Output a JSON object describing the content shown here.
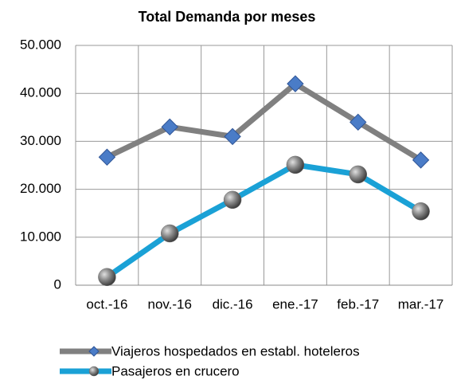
{
  "chart_data": {
    "type": "line",
    "title": "Total Demanda por meses",
    "categories": [
      "oct.-16",
      "nov.-16",
      "dic.-16",
      "ene.-17",
      "feb.-17",
      "mar.-17"
    ],
    "series": [
      {
        "name": "Viajeros hospedados en establ. hoteleros",
        "color": "#808080",
        "marker": "diamond",
        "marker_color": "#4a7cc7",
        "values": [
          26700,
          33000,
          31000,
          42000,
          34000,
          26100
        ]
      },
      {
        "name": "Pasajeros en crucero",
        "color": "#1aa1d6",
        "marker": "circle",
        "marker_color": "#6e6e6e",
        "values": [
          1700,
          10800,
          17800,
          25100,
          23100,
          15400
        ]
      }
    ],
    "ylim": [
      0,
      50000
    ],
    "yticks": [
      0,
      {
        "value": 10000,
        "label": "10.000"
      },
      {
        "value": 20000,
        "label": "20.000"
      },
      {
        "value": 30000,
        "label": "30.000"
      },
      {
        "value": 40000,
        "label": "40.000"
      },
      {
        "value": 50000,
        "label": "50.000"
      }
    ],
    "grid": true,
    "legend": "bottom"
  }
}
